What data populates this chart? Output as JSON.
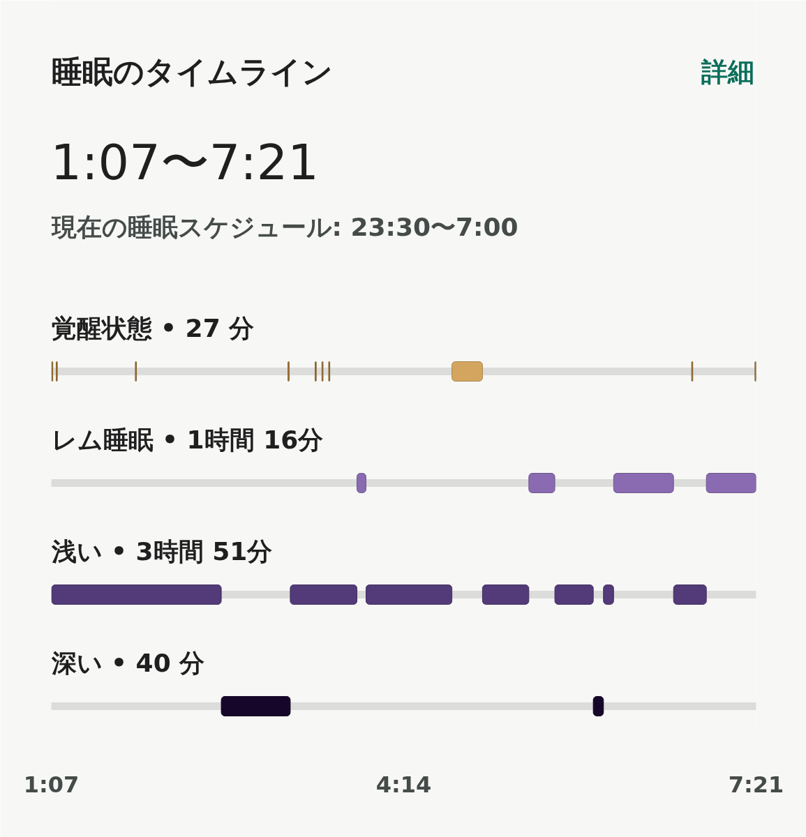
{
  "chart_data": {
    "type": "bar",
    "orientation": "horizontal",
    "title": "睡眠のタイムライン",
    "subtitle": "1:07〜7:21",
    "annotations": [
      "詳細",
      "現在の睡眠スケジュール: 23:30〜7:00"
    ],
    "categories": [
      "覚醒状態 • 27 分",
      "レム睡眠 • 1時間 16分",
      "浅い • 3時間 51分",
      "深い • 40 分"
    ],
    "xlim": [
      1.1167,
      7.35
    ],
    "xticks": [
      {
        "value": 1.1167,
        "label": "1:07"
      },
      {
        "value": 4.2333,
        "label": "4:14"
      },
      {
        "value": 7.35,
        "label": "7:21"
      }
    ],
    "grid": "y",
    "series": [
      {
        "base": [
          1.12,
          3.82,
          1.12,
          2.62
        ],
        "values": [
          0.01,
          0.08,
          1.5,
          0.61
        ],
        "colors": [
          "#a47534",
          "#8a6bb1",
          "#533a78",
          "#16062a"
        ]
      },
      {
        "base": [
          1.16,
          5.34,
          3.23,
          5.91
        ],
        "values": [
          0.01,
          0.23,
          0.59,
          0.09
        ],
        "colors": [
          "#a47534",
          "#8a6bb1",
          "#533a78",
          "#16062a"
        ]
      },
      {
        "base": [
          1.86,
          6.09,
          3.9,
          null
        ],
        "values": [
          0.01,
          0.53,
          0.76,
          null
        ],
        "colors": [
          "#a47534",
          "#8a6bb1",
          "#533a78",
          "#16062a"
        ]
      },
      {
        "base": [
          3.21,
          6.91,
          4.93,
          null
        ],
        "values": [
          0.01,
          0.44,
          0.41,
          null
        ],
        "colors": [
          "#a47534",
          "#8a6bb1",
          "#533a78",
          "#16062a"
        ]
      },
      {
        "base": [
          3.45,
          null,
          5.57,
          null
        ],
        "values": [
          0.01,
          null,
          0.34,
          null
        ],
        "colors": [
          "#a47534",
          "#8a6bb1",
          "#533a78",
          "#16062a"
        ]
      },
      {
        "base": [
          3.51,
          null,
          6.0,
          null
        ],
        "values": [
          0.01,
          null,
          0.09,
          null
        ],
        "colors": [
          "#a47534",
          "#8a6bb1",
          "#533a78",
          "#16062a"
        ]
      },
      {
        "base": [
          3.57,
          null,
          6.62,
          null
        ],
        "values": [
          0.01,
          null,
          0.29,
          null
        ],
        "colors": [
          "#a47534",
          "#8a6bb1",
          "#533a78",
          "#16062a"
        ]
      },
      {
        "base": [
          4.66,
          null,
          null,
          null
        ],
        "values": [
          0.27,
          null,
          null,
          null
        ],
        "colors": [
          "#d4a55f",
          "#8a6bb1",
          "#533a78",
          "#16062a"
        ]
      },
      {
        "base": [
          6.78,
          null,
          null,
          null
        ],
        "values": [
          0.01,
          null,
          null,
          null
        ],
        "colors": [
          "#a47534",
          "#8a6bb1",
          "#533a78",
          "#16062a"
        ]
      },
      {
        "base": [
          7.34,
          null,
          null,
          null
        ],
        "values": [
          0.01,
          null,
          null,
          null
        ],
        "colors": [
          "#a47534",
          "#8a6bb1",
          "#533a78",
          "#16062a"
        ]
      }
    ]
  }
}
